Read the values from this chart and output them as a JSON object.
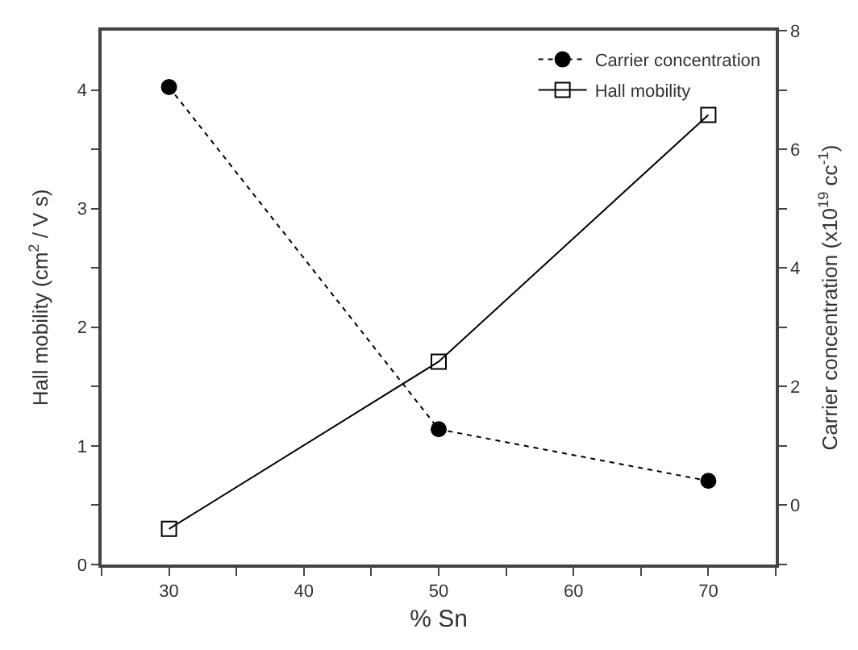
{
  "chart_data": {
    "type": "line",
    "xlabel": "% Sn",
    "ylabel": "Hall mobility (cm$^{2}$ / V s)",
    "y2label": "Carrier concentration (x10$^{19}$ cc$^{-1}$)",
    "x": [
      30,
      50,
      70
    ],
    "series": [
      {
        "name": "Carrier concentration",
        "color": "#000000",
        "values": [
          7.05,
          1.28,
          0.41
        ],
        "axis": "y2",
        "marker": "circle",
        "line_style": "dotted"
      },
      {
        "name": "Hall mobility",
        "color": "#000000",
        "values": [
          0.3,
          1.71,
          3.79
        ],
        "marker": "square",
        "line_style": "solid"
      }
    ],
    "xlim": [
      25,
      75
    ],
    "xticks": [
      {
        "value": 25,
        "label": null
      },
      30,
      {
        "value": 35,
        "label": null
      },
      40,
      {
        "value": 45,
        "label": null
      },
      50,
      {
        "value": 55,
        "label": null
      },
      60,
      {
        "value": 65,
        "label": null
      },
      70,
      {
        "value": 75,
        "label": null
      }
    ],
    "ylim": [
      0,
      4.5
    ],
    "yticks": [
      0,
      {
        "value": 0.5,
        "label": null
      },
      1,
      {
        "value": 1.5,
        "label": null
      },
      2,
      {
        "value": 2.5,
        "label": null
      },
      3,
      {
        "value": 3.5,
        "label": null
      },
      4
    ],
    "y2lim": [
      -1,
      8
    ],
    "y2ticks": [
      {
        "value": -1,
        "label": null
      },
      0,
      {
        "value": 1,
        "label": null
      },
      2,
      {
        "value": 3,
        "label": null
      },
      4,
      {
        "value": 5,
        "label": null
      },
      6,
      {
        "value": 7,
        "label": null
      },
      8
    ],
    "legend": "top right"
  }
}
